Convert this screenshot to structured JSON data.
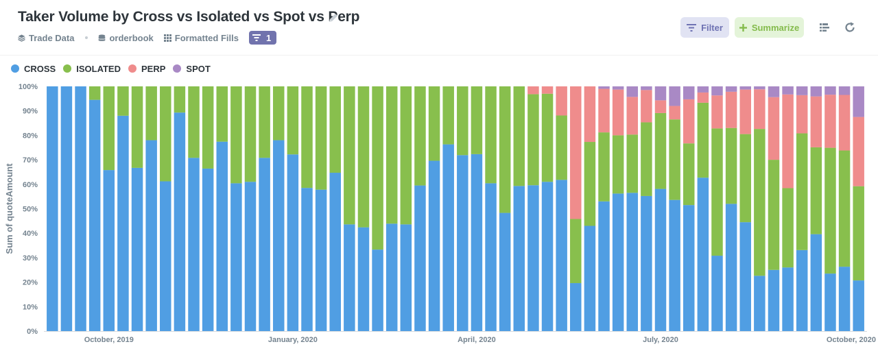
{
  "header": {
    "title": "Taker Volume by Cross vs Isolated vs Spot vs Perp",
    "breadcrumbs": [
      "Trade Data",
      "orderbook",
      "Formatted Fills"
    ],
    "filter_count": "1",
    "filter_label": "Filter",
    "summarize_label": "Summarize"
  },
  "icons": [
    "pencil-icon",
    "database-icon",
    "table-icon",
    "grid-icon",
    "filter-icon",
    "plus-icon",
    "list-icon",
    "refresh-icon"
  ],
  "colors": {
    "accent": "#7173ad",
    "CROSS": "#509ee3",
    "ISOLATED": "#88bf4d",
    "PERP": "#ef8c8c",
    "SPOT": "#a989c5"
  },
  "chart_data": {
    "type": "bar",
    "stacked": "100%",
    "legend_position": "top-left",
    "ylabel": "Sum of quoteAmount",
    "xlabel": "",
    "ylim": [
      0,
      100
    ],
    "y_ticks": [
      "0%",
      "10%",
      "20%",
      "30%",
      "40%",
      "50%",
      "60%",
      "70%",
      "80%",
      "90%",
      "100%"
    ],
    "x_ticks": [
      "October, 2019",
      "January, 2020",
      "April, 2020",
      "July, 2020",
      "October, 2020"
    ],
    "series": [
      {
        "name": "CROSS",
        "values": [
          100,
          100,
          100,
          94.5,
          65.8,
          88,
          66.7,
          78,
          61.2,
          89.3,
          70.8,
          66.4,
          77.4,
          60.4,
          61,
          70.8,
          78,
          72.2,
          58.5,
          57.8,
          64.7,
          43.6,
          42.4,
          33.3,
          43.9,
          43.6,
          59.5,
          69.6,
          76.3,
          71.9,
          72.3,
          60.4,
          48.3,
          59.3,
          59.6,
          61,
          61.8,
          19.6,
          43,
          53,
          56.2,
          56.5,
          55.2,
          58.1,
          53.6,
          51.5,
          62.7,
          30.8,
          52,
          44.5,
          22.6,
          25,
          26,
          33.1,
          39.6,
          23.5,
          26.3,
          20.7
        ]
      },
      {
        "name": "ISOLATED",
        "values": [
          0,
          0,
          0,
          5.5,
          34.2,
          12,
          33.3,
          22,
          38.8,
          10.7,
          29.2,
          33.6,
          22.6,
          39.6,
          39,
          29.2,
          22,
          27.8,
          41.5,
          42.2,
          35.3,
          56.4,
          57.6,
          66.7,
          56.1,
          56.4,
          40.5,
          30.4,
          23.7,
          28.1,
          27.7,
          39.6,
          51.7,
          40.7,
          37.2,
          36,
          26.3,
          26.2,
          34.3,
          28.2,
          23.8,
          23.8,
          30.1,
          31,
          32.9,
          25.2,
          30.6,
          52,
          31,
          36,
          60,
          45,
          32.4,
          47.7,
          35.5,
          51.4,
          47.5,
          38.5
        ]
      },
      {
        "name": "PERP",
        "values": [
          0,
          0,
          0,
          0,
          0,
          0,
          0,
          0,
          0,
          0,
          0,
          0,
          0,
          0,
          0,
          0,
          0,
          0,
          0,
          0,
          0,
          0,
          0,
          0,
          0,
          0,
          0,
          0,
          0,
          0,
          0,
          0,
          0,
          0,
          3.2,
          3,
          11.9,
          54.2,
          22.7,
          17.8,
          18.7,
          15.4,
          13.2,
          5.2,
          5.5,
          18,
          4.2,
          13.5,
          14.8,
          18.2,
          16.2,
          25.6,
          38.3,
          15.6,
          20.8,
          21.7,
          22.7,
          28.3
        ]
      },
      {
        "name": "SPOT",
        "values": [
          0,
          0,
          0,
          0,
          0,
          0,
          0,
          0,
          0,
          0,
          0,
          0,
          0,
          0,
          0,
          0,
          0,
          0,
          0,
          0,
          0,
          0,
          0,
          0,
          0,
          0,
          0,
          0,
          0,
          0,
          0,
          0,
          0,
          0,
          0,
          0,
          0,
          0,
          0,
          1,
          1.3,
          4.3,
          1.5,
          5.7,
          8,
          5.3,
          2.5,
          3.7,
          2.2,
          1.3,
          1.2,
          4.4,
          3.3,
          3.6,
          4.1,
          3.4,
          3.5,
          12.5
        ]
      }
    ]
  }
}
